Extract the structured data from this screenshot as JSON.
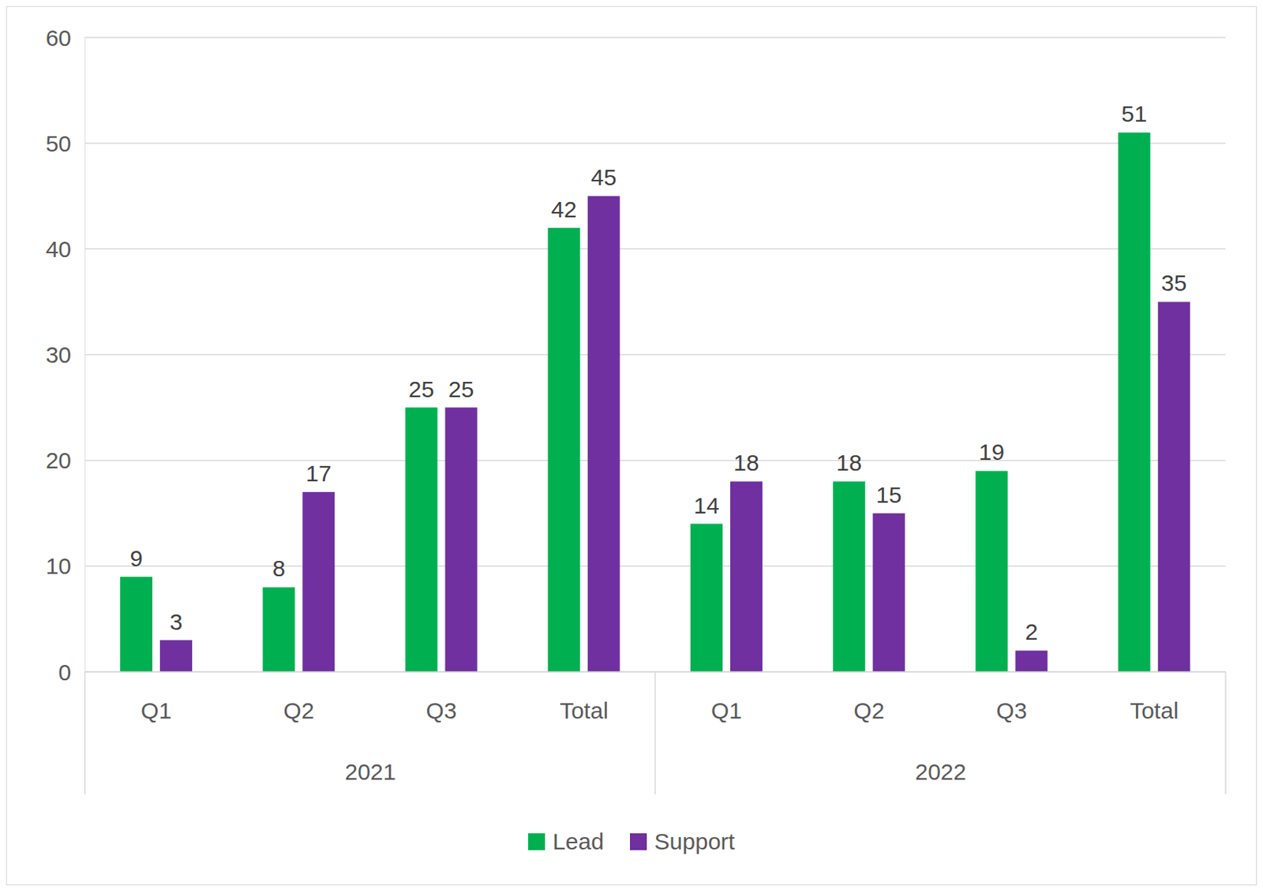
{
  "chart_data": {
    "type": "bar",
    "categories": [
      "Q1",
      "Q2",
      "Q3",
      "Total",
      "Q1",
      "Q2",
      "Q3",
      "Total"
    ],
    "category_groups": [
      "2021",
      "2021",
      "2021",
      "2021",
      "2022",
      "2022",
      "2022",
      "2022"
    ],
    "series": [
      {
        "name": "Lead",
        "color": "#00b050",
        "values": [
          9,
          8,
          25,
          42,
          14,
          18,
          19,
          51
        ]
      },
      {
        "name": "Support",
        "color": "#7030a0",
        "values": [
          3,
          17,
          25,
          45,
          18,
          15,
          2,
          35
        ]
      }
    ],
    "ylim": [
      0,
      60
    ],
    "yticks": [
      0,
      10,
      20,
      30,
      40,
      50,
      60
    ],
    "grid": true,
    "data_labels": true,
    "legend": "bottom"
  }
}
